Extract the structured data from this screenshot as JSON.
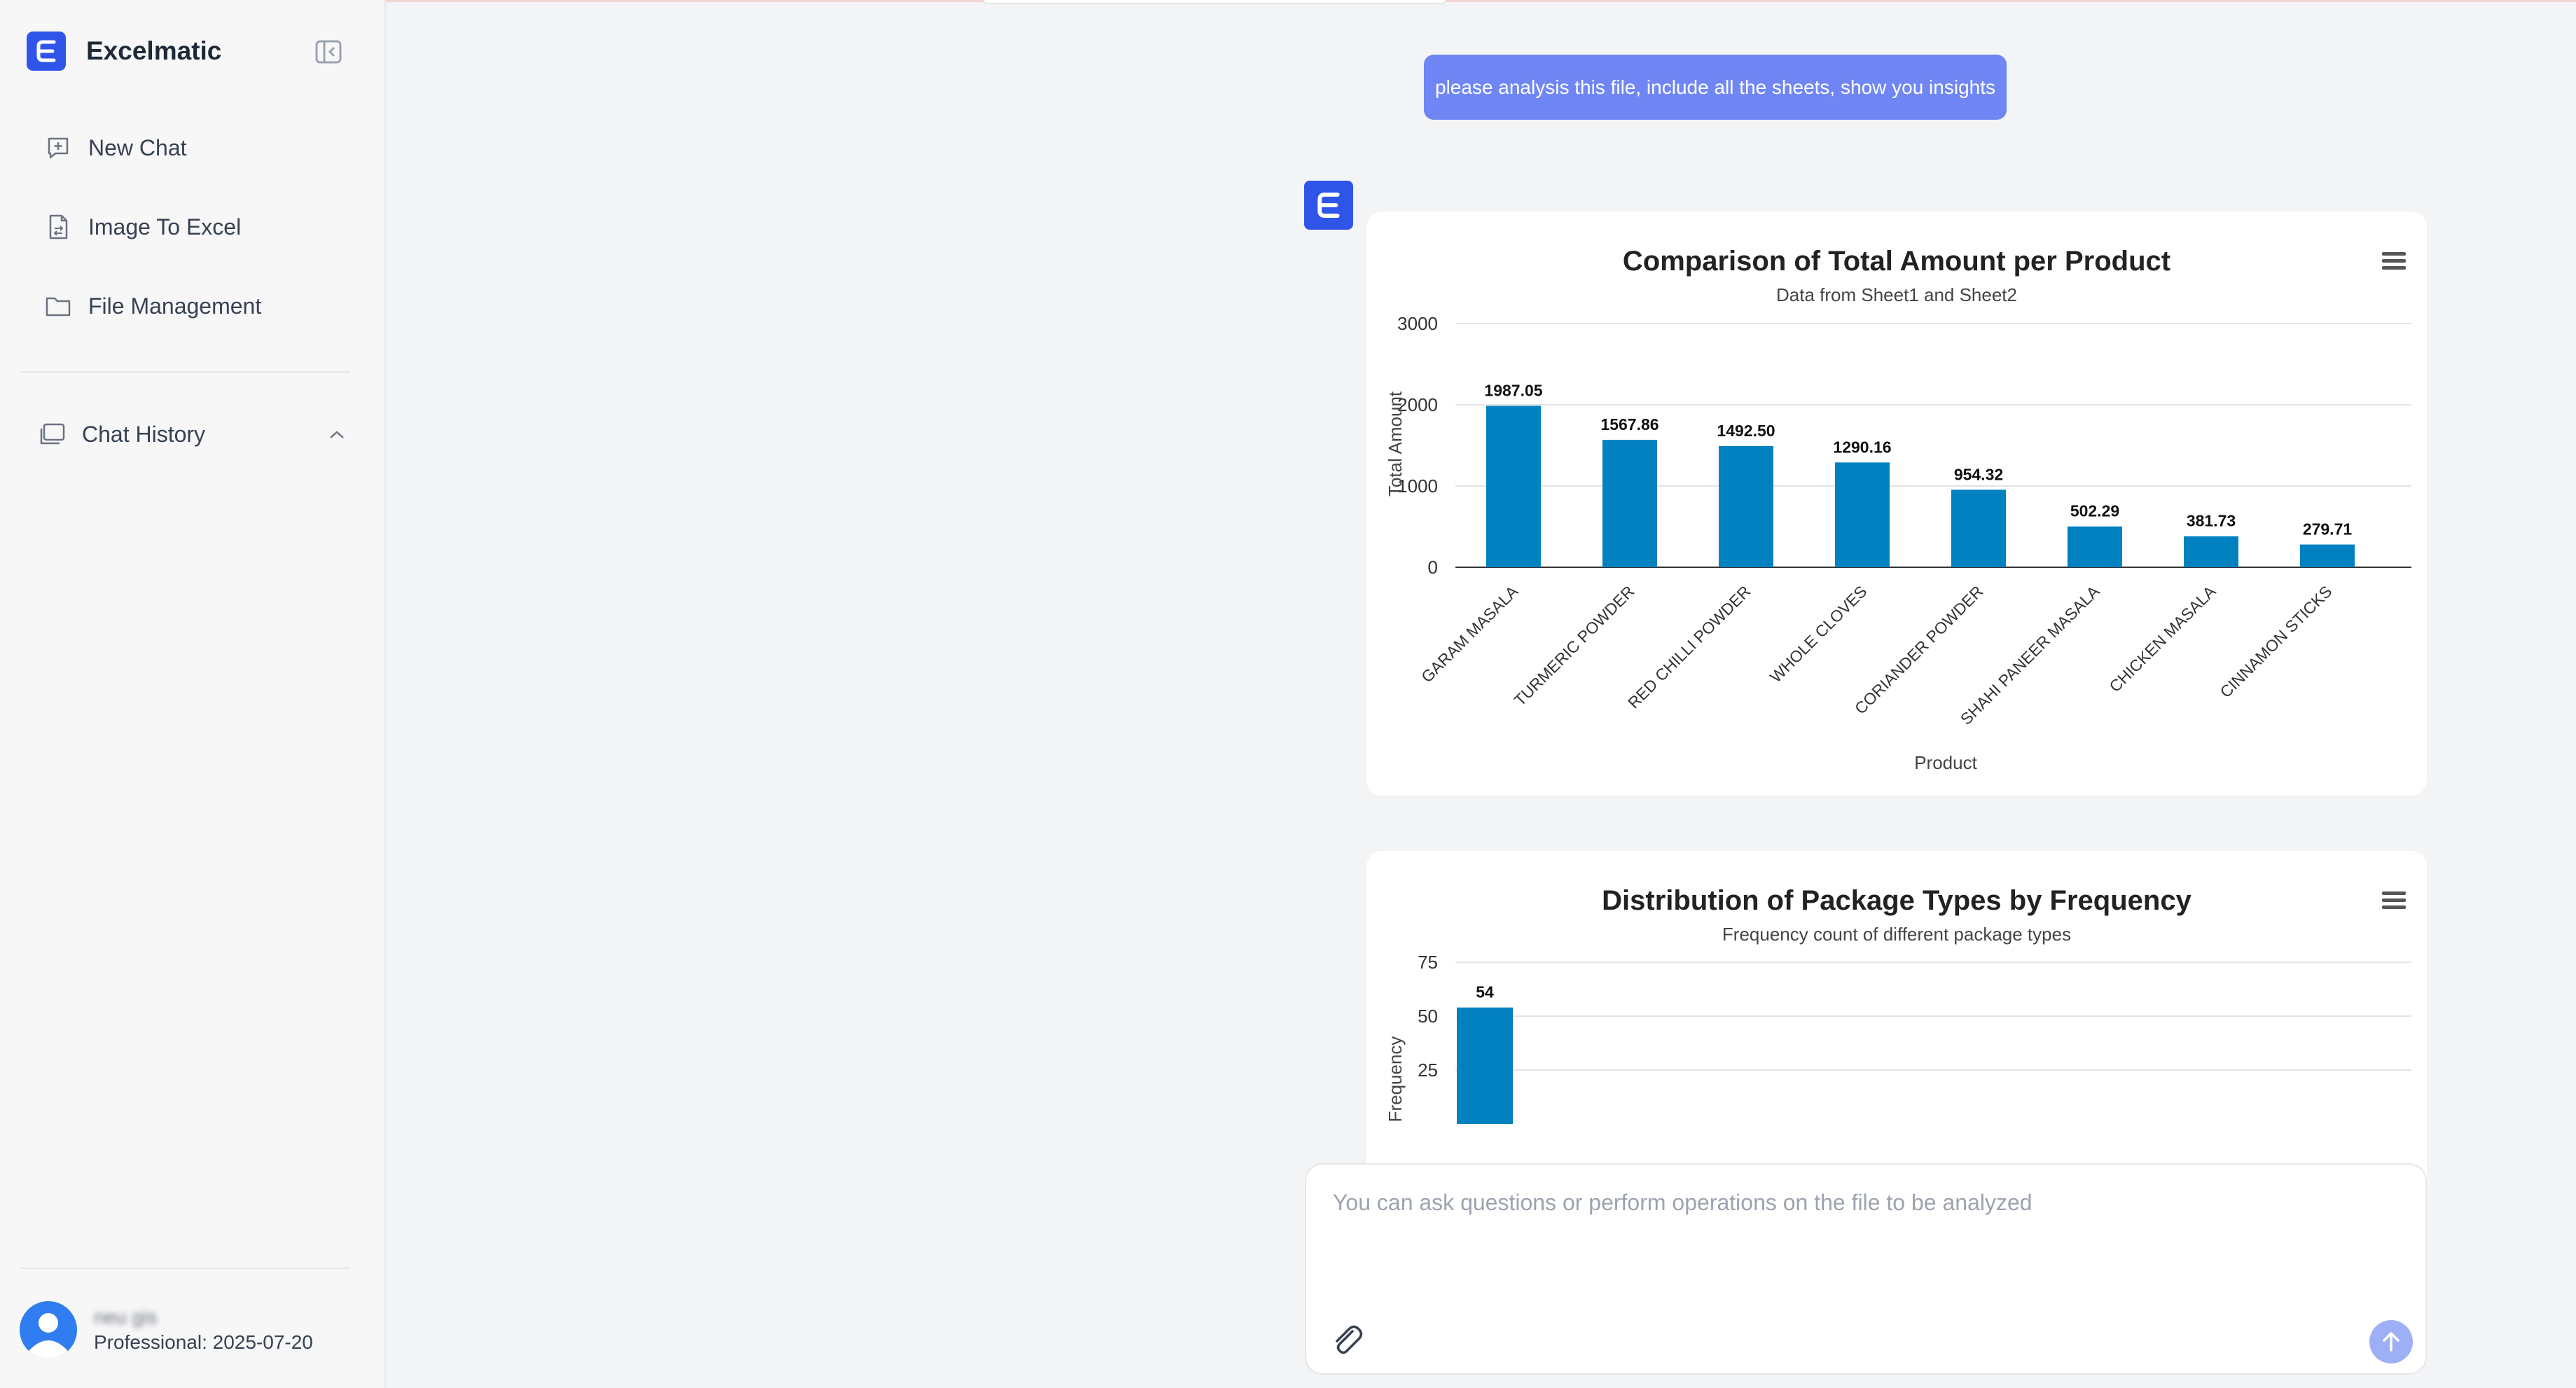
{
  "sidebar": {
    "brand": "Excelmatic",
    "nav": [
      {
        "label": "New Chat",
        "icon": "new-chat-icon"
      },
      {
        "label": "Image To Excel",
        "icon": "image-to-excel-icon"
      },
      {
        "label": "File Management",
        "icon": "folder-icon"
      }
    ],
    "history_label": "Chat History",
    "user": {
      "name": "neu gis",
      "plan": "Professional: 2025-07-20"
    }
  },
  "conversation": {
    "user_message": "please analysis this file, include all the sheets, show you insights"
  },
  "chart_data": [
    {
      "type": "bar",
      "title": "Comparison of Total Amount per Product",
      "subtitle": "Data from Sheet1 and Sheet2",
      "xlabel": "Product",
      "ylabel": "Total Amount",
      "ylim": [
        0,
        3000
      ],
      "yticks": [
        0,
        1000,
        2000,
        3000
      ],
      "categories": [
        "GARAM MASALA",
        "TURMERIC POWDER",
        "RED CHILLI POWDER",
        "WHOLE CLOVES",
        "CORIANDER POWDER",
        "SHAHI PANEER MASALA",
        "CHICKEN MASALA",
        "CINNAMON STICKS"
      ],
      "values": [
        1987.05,
        1567.86,
        1492.5,
        1290.16,
        954.32,
        502.29,
        381.73,
        279.71
      ],
      "value_labels": [
        "1987.05",
        "1567.86",
        "1492.50",
        "1290.16",
        "954.32",
        "502.29",
        "381.73",
        "279.71"
      ],
      "color": "#0281c1",
      "grid": true,
      "legend": false
    },
    {
      "type": "bar",
      "title": "Distribution of Package Types by Frequency",
      "subtitle": "Frequency count of different package types",
      "xlabel": "",
      "ylabel": "Frequency",
      "ylim": [
        0,
        75
      ],
      "yticks": [
        25,
        50,
        75
      ],
      "categories": [
        ""
      ],
      "values": [
        54
      ],
      "value_labels": [
        "54"
      ],
      "color": "#0281c1",
      "grid": true,
      "legend": false
    }
  ],
  "input": {
    "placeholder": "You can ask questions or perform operations on the file to be analyzed"
  },
  "colors": {
    "accent": "#2f55e8",
    "user_bubble": "#6f86f4",
    "bar": "#0281c1",
    "send_button": "#9db0f6"
  }
}
